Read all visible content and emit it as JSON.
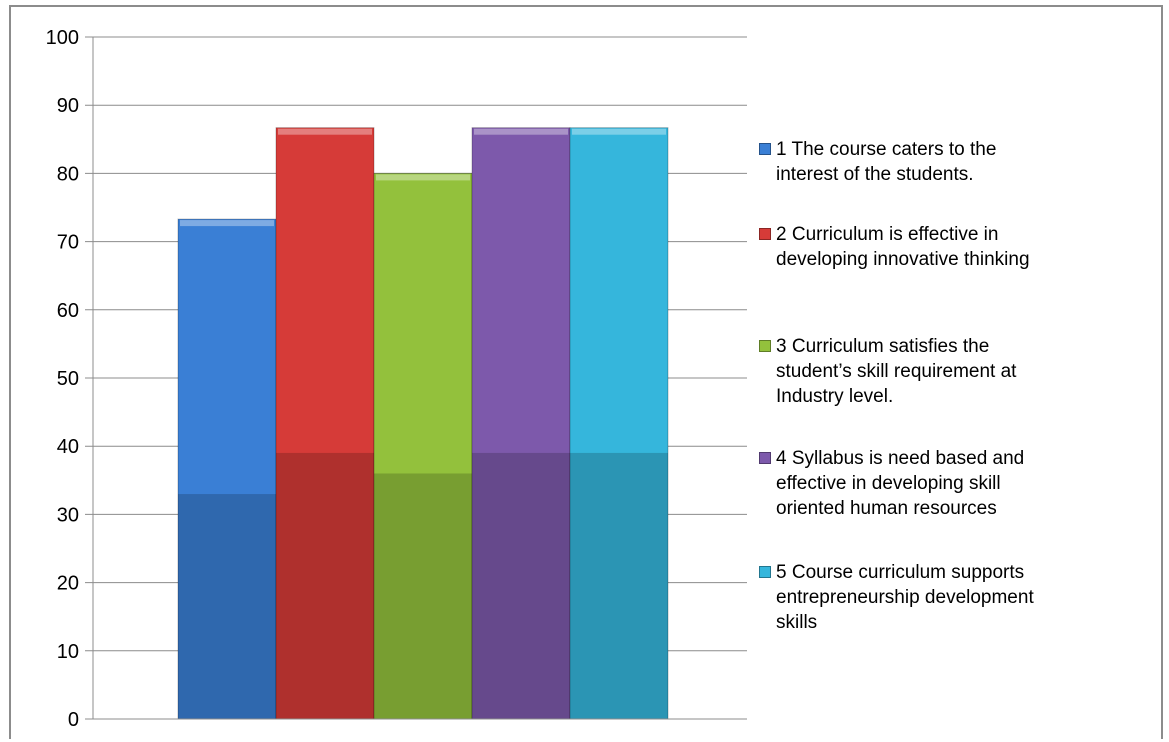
{
  "chart_data": {
    "type": "bar",
    "title": "",
    "xlabel": "",
    "ylabel": "",
    "ylim": [
      0,
      100
    ],
    "yticks": [
      "0",
      "10",
      "20",
      "30",
      "40",
      "50",
      "60",
      "70",
      "80",
      "90",
      "100"
    ],
    "grid": true,
    "legend_position": "right",
    "categories": [
      ""
    ],
    "series": [
      {
        "name": "1 The course caters to the\ninterest of the students.",
        "values": [
          73.3
        ],
        "color": "#3a7fd5"
      },
      {
        "name": "2 Curriculum is effective in\ndeveloping innovative thinking",
        "values": [
          86.7
        ],
        "color": "#d63b38"
      },
      {
        "name": "3 Curriculum satisfies the\nstudent’s skill requirement at\nIndustry level.",
        "values": [
          80.0
        ],
        "color": "#93c13c"
      },
      {
        "name": "4 Syllabus is need based and\neffective in developing skill\noriented human resources",
        "values": [
          86.7
        ],
        "color": "#7d59ab"
      },
      {
        "name": "5 Course curriculum supports\nentrepreneurship development\nskills",
        "values": [
          86.7
        ],
        "color": "#35b6dc"
      }
    ]
  }
}
